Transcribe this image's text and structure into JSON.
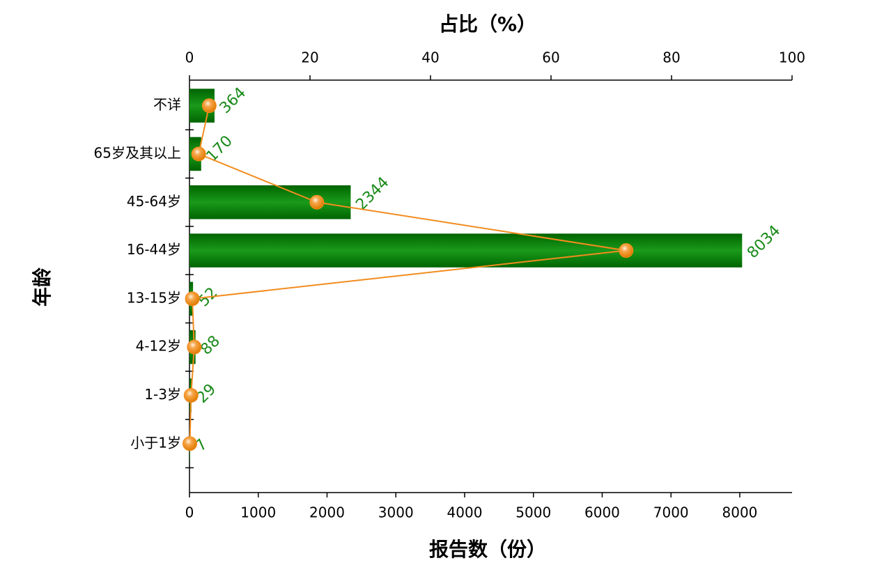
{
  "chart_data": {
    "type": "bar",
    "title_top": "占比（%）",
    "x_title": "报告数（份）",
    "y_title": "年龄",
    "categories": [
      "不详",
      "65岁及其以上",
      "45-64岁",
      "16-44岁",
      "13-15岁",
      "4-12岁",
      "1-3岁",
      "小于1岁"
    ],
    "series": [
      {
        "type": "bar",
        "color": "#008000",
        "values": [
          364,
          170,
          2344,
          8034,
          52,
          88,
          29,
          7
        ]
      },
      {
        "type": "line",
        "axis": "x2",
        "color": "#f28c1e",
        "values": [
          3.28,
          1.53,
          21.14,
          72.46,
          0.47,
          0.79,
          0.26,
          0.06
        ]
      }
    ],
    "xlim": [
      0,
      8760
    ],
    "xticks": [
      0,
      1000,
      2000,
      3000,
      4000,
      5000,
      6000,
      7000,
      8000
    ],
    "x2lim": [
      0,
      100
    ],
    "x2ticks": [
      0,
      20,
      40,
      60,
      80,
      100
    ]
  }
}
